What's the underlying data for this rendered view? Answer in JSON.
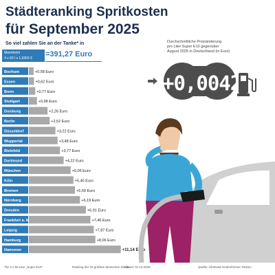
{
  "title_line1": "Städteranking Spritkosten",
  "title_line2": "für September 2025",
  "subtitle": "So viel zahlen Sie an der Tanke* in",
  "reference": {
    "city": "Mannheim",
    "formula": "4 x 60 l x 1,6303 €",
    "value": "=391,27 Euro"
  },
  "info_text_lines": [
    "Durchschnittliche Preisänderung",
    "pro Liter Super E10 gegenüber",
    "August 2025 in Deutschland (in Euro)"
  ],
  "price_change": "+0,0042",
  "footer": {
    "note": "*für 4 x 60 Liter „Super E10“",
    "ranking": "Ranking der 20 größten deutschen Städte",
    "date": "Stand: 01.10.2025",
    "source": "Quelle: infoRoad GmbH/Clever Tanken"
  },
  "colors": {
    "title": "#1b2f4d",
    "label_box": "#2e7bb8",
    "bar": "#a9a9a9",
    "highlight_value": "#2e7bb8",
    "bubble": "#4d4d4d"
  },
  "chart_data": {
    "type": "bar",
    "orientation": "horizontal",
    "categories": [
      "Bochum",
      "Essen",
      "Bonn",
      "Stuttgart",
      "Duisburg",
      "Berlin",
      "Düsseldorf",
      "Wuppertal",
      "Bielefeld",
      "Dortmund",
      "München",
      "Köln",
      "Bremen",
      "Nürnberg",
      "Dresden",
      "Frankfurt a. M.",
      "Leipzig",
      "Hamburg",
      "Hannover"
    ],
    "values": [
      0.58,
      0.62,
      0.77,
      0.98,
      2.26,
      2.52,
      3.22,
      3.48,
      3.77,
      4.22,
      5.06,
      5.4,
      5.59,
      6.19,
      6.91,
      7.46,
      7.87,
      8.06,
      11.14
    ],
    "value_labels": [
      "+0,58 Euro",
      "+0,62 Euro",
      "+0,77 Euro",
      "+0,98 Euro",
      "+2,26 Euro",
      "+2,52 Euro",
      "+3,22 Euro",
      "+3,48 Euro",
      "+3,77 Euro",
      "+4,22 Euro",
      "+5,06 Euro",
      "+5,40 Euro",
      "+5,59 Euro",
      "+6,19 Euro",
      "+6,91 Euro",
      "+7,46 Euro",
      "+7,87 Euro",
      "+8,06 Euro",
      "+11,14 Euro"
    ],
    "highlight_last": true
  }
}
